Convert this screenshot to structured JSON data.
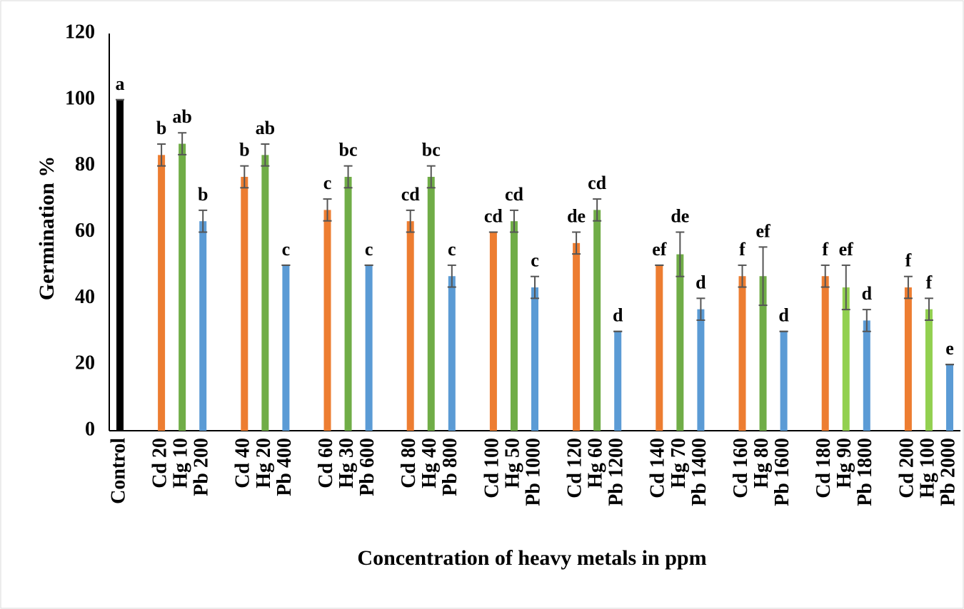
{
  "chart_data": {
    "type": "bar",
    "y_label": "Germination  %",
    "x_label": "Concentration of heavy metals in ppm",
    "categories": [
      "Control",
      null,
      "Cd 20",
      "Hg 10",
      "Pb 200",
      null,
      "Cd 40",
      "Hg 20",
      "Pb 400",
      null,
      "Cd 60",
      "Hg 30",
      "Pb 600",
      null,
      "Cd 80",
      "Hg 40",
      "Pb 800",
      null,
      "Cd 100",
      "Hg 50",
      "Pb 1000",
      null,
      "Cd 120",
      "Hg 60",
      "Pb 1200",
      null,
      "Cd 140",
      "Hg 70",
      "Pb 1400",
      null,
      "Cd 160",
      "Hg 80",
      "Pb 1600",
      null,
      "Cd 180",
      "Hg 90",
      "Pb 1800",
      null,
      "Cd 200",
      "Hg 100",
      "Pb 2000"
    ],
    "values": [
      100,
      null,
      83.3,
      86.7,
      63.3,
      null,
      76.7,
      83.3,
      50,
      null,
      66.7,
      76.7,
      50,
      null,
      63.3,
      76.7,
      46.7,
      null,
      60,
      63.3,
      43.3,
      null,
      56.7,
      66.7,
      30,
      null,
      50,
      53.3,
      36.7,
      null,
      46.7,
      46.7,
      30,
      null,
      46.7,
      43.3,
      33.3,
      null,
      43.3,
      36.7,
      20
    ],
    "errors": [
      0,
      null,
      3.3,
      3.3,
      3.3,
      null,
      3.3,
      3.3,
      0,
      null,
      3.3,
      3.3,
      0,
      null,
      3.3,
      3.3,
      3.3,
      null,
      0,
      3.3,
      3.3,
      null,
      3.3,
      3.3,
      0,
      null,
      0,
      6.7,
      3.3,
      null,
      3.3,
      8.8,
      0,
      null,
      3.3,
      6.7,
      3.3,
      null,
      3.3,
      3.3,
      0
    ],
    "letters": [
      "a",
      null,
      "b",
      "ab",
      "b",
      null,
      "b",
      "ab",
      "c",
      null,
      "c",
      "bc",
      "c",
      null,
      "cd",
      "bc",
      "c",
      null,
      "cd",
      "cd",
      "c",
      null,
      "de",
      "cd",
      "d",
      null,
      "ef",
      "de",
      "d",
      null,
      "f",
      "ef",
      "d",
      null,
      "f",
      "ef",
      "d",
      null,
      "f",
      "f",
      "e"
    ],
    "colors": [
      "#000000",
      null,
      "#ed7d31",
      "#70ad47",
      "#5b9bd5",
      null,
      "#ed7d31",
      "#70ad47",
      "#5b9bd5",
      null,
      "#ed7d31",
      "#70ad47",
      "#5b9bd5",
      null,
      "#ed7d31",
      "#70ad47",
      "#5b9bd5",
      null,
      "#ed7d31",
      "#70ad47",
      "#5b9bd5",
      null,
      "#ed7d31",
      "#70ad47",
      "#5b9bd5",
      null,
      "#ed7d31",
      "#70ad47",
      "#5b9bd5",
      null,
      "#ed7d31",
      "#70ad47",
      "#5b9bd5",
      null,
      "#ed7d31",
      "#92d050",
      "#5b9bd5",
      null,
      "#ed7d31",
      "#92d050",
      "#5b9bd5"
    ],
    "ylim": [
      0,
      120
    ],
    "yticks": [
      0,
      20,
      40,
      60,
      80,
      100,
      120
    ],
    "grid": false
  }
}
